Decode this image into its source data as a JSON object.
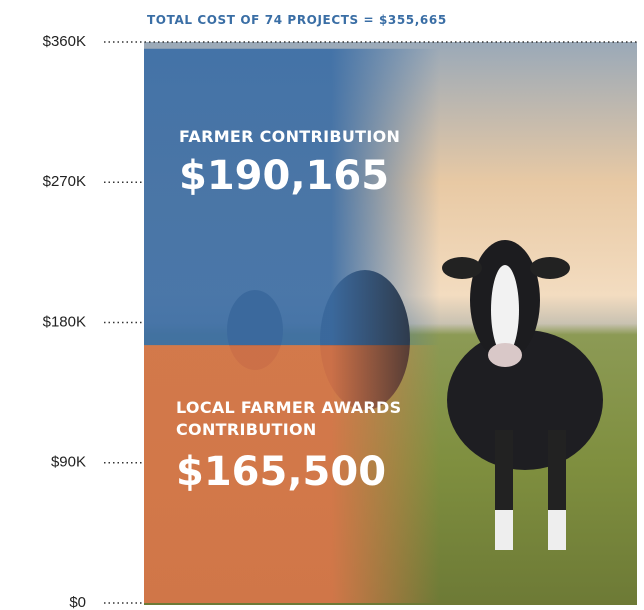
{
  "chart_data": {
    "type": "stacked-bar",
    "title": "TOTAL COST OF 74 PROJECTS = $355,665",
    "ylim": [
      0,
      360000
    ],
    "yticks": [
      {
        "value": 0,
        "label": "$0"
      },
      {
        "value": 90000,
        "label": "$90K"
      },
      {
        "value": 180000,
        "label": "$180K"
      },
      {
        "value": 270000,
        "label": "$270K"
      },
      {
        "value": 360000,
        "label": "$360K"
      }
    ],
    "series": [
      {
        "name": "LOCAL FARMER AWARDS CONTRIBUTION",
        "color": "#d9764a",
        "values": [
          165500
        ],
        "value_labels": [
          "$165,500"
        ]
      },
      {
        "name": "FARMER CONTRIBUTION",
        "color": "#3c6ea6",
        "values": [
          190165
        ],
        "value_labels": [
          "$190,165"
        ]
      }
    ]
  }
}
